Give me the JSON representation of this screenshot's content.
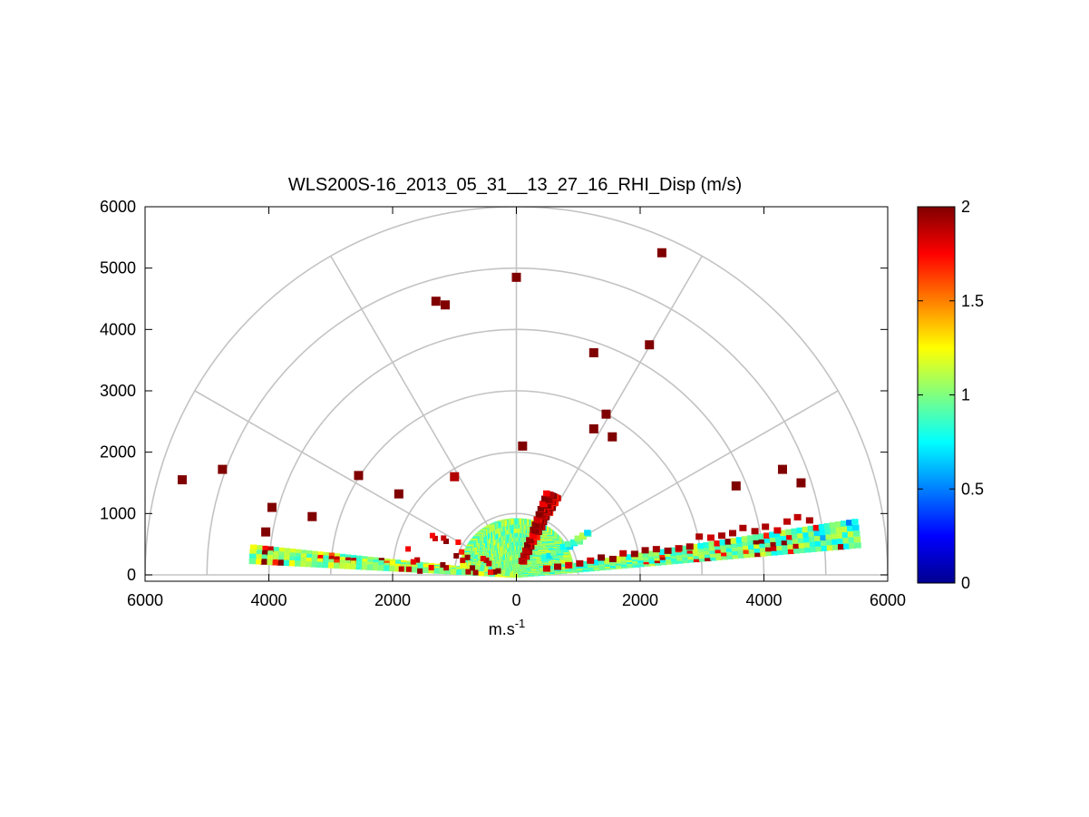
{
  "chart_data": {
    "type": "heatmap",
    "subtype": "polar-rhi-sector",
    "title": "WLS200S-16_2013_05_31__13_27_16_RHI_Disp (m/s)",
    "xlabel_base": "m.s",
    "xlabel_exponent": "-1",
    "ylabel": "",
    "xlim": [
      -6000,
      6000
    ],
    "ylim": [
      0,
      6000
    ],
    "x_tick_values": [
      -6000,
      -4000,
      -2000,
      0,
      2000,
      4000,
      6000
    ],
    "x_tick_labels": [
      "6000",
      "4000",
      "2000",
      "0",
      "2000",
      "4000",
      "6000"
    ],
    "y_tick_values": [
      0,
      1000,
      2000,
      3000,
      4000,
      5000,
      6000
    ],
    "y_tick_labels": [
      "0",
      "1000",
      "2000",
      "3000",
      "4000",
      "5000",
      "6000"
    ],
    "polar_grid": {
      "range_rings": [
        1000,
        2000,
        3000,
        4000,
        5000,
        6000
      ],
      "spokes_deg": [
        0,
        30,
        60,
        90,
        120,
        150,
        180
      ]
    },
    "colorbar": {
      "colormap": "jet",
      "vmin": 0,
      "vmax": 2,
      "tick_values": [
        0,
        0.5,
        1,
        1.5,
        2
      ],
      "tick_labels": [
        "0",
        "0.5",
        "1",
        "1.5",
        "2"
      ]
    },
    "beam_swaths": [
      {
        "side": "right",
        "az_deg_from": 5,
        "az_deg_to": 9,
        "range_from": 0,
        "range_to": 5600,
        "typical_value": 0.95
      },
      {
        "side": "left",
        "az_deg_from": 174,
        "az_deg_to": 177,
        "range_from": 0,
        "range_to": 4300,
        "typical_value": 1.05
      },
      {
        "side": "near",
        "az_deg_from": 10,
        "az_deg_to": 170,
        "range_from": 0,
        "range_to": 900,
        "typical_value": 1.0
      },
      {
        "side": "spike",
        "az_deg_from": 62,
        "az_deg_to": 70,
        "range_from": 200,
        "range_to": 1500,
        "typical_value": 1.9
      },
      {
        "side": "spike",
        "az_deg_from": 28,
        "az_deg_to": 31,
        "range_from": 300,
        "range_to": 1400,
        "typical_value": 0.9
      }
    ],
    "sparse_points": [
      {
        "x": -5400,
        "y": 1550,
        "value": 2
      },
      {
        "x": -4750,
        "y": 1720,
        "value": 2
      },
      {
        "x": -3950,
        "y": 1100,
        "value": 2
      },
      {
        "x": -4050,
        "y": 700,
        "value": 2
      },
      {
        "x": -3300,
        "y": 950,
        "value": 2
      },
      {
        "x": -2550,
        "y": 1620,
        "value": 2
      },
      {
        "x": -1900,
        "y": 1320,
        "value": 2
      },
      {
        "x": -1300,
        "y": 4460,
        "value": 2
      },
      {
        "x": -1150,
        "y": 4400,
        "value": 2
      },
      {
        "x": 0,
        "y": 4850,
        "value": 2
      },
      {
        "x": 2350,
        "y": 5250,
        "value": 2
      },
      {
        "x": 1250,
        "y": 3620,
        "value": 2
      },
      {
        "x": 2150,
        "y": 3750,
        "value": 2
      },
      {
        "x": 1450,
        "y": 2620,
        "value": 2
      },
      {
        "x": 1550,
        "y": 2250,
        "value": 2
      },
      {
        "x": 1250,
        "y": 2380,
        "value": 2
      },
      {
        "x": 3550,
        "y": 1450,
        "value": 2
      },
      {
        "x": 4300,
        "y": 1720,
        "value": 2
      },
      {
        "x": 4600,
        "y": 1500,
        "value": 2
      },
      {
        "x": 100,
        "y": 2100,
        "value": 2
      },
      {
        "x": -1000,
        "y": 1600,
        "value": 1.9
      }
    ]
  }
}
